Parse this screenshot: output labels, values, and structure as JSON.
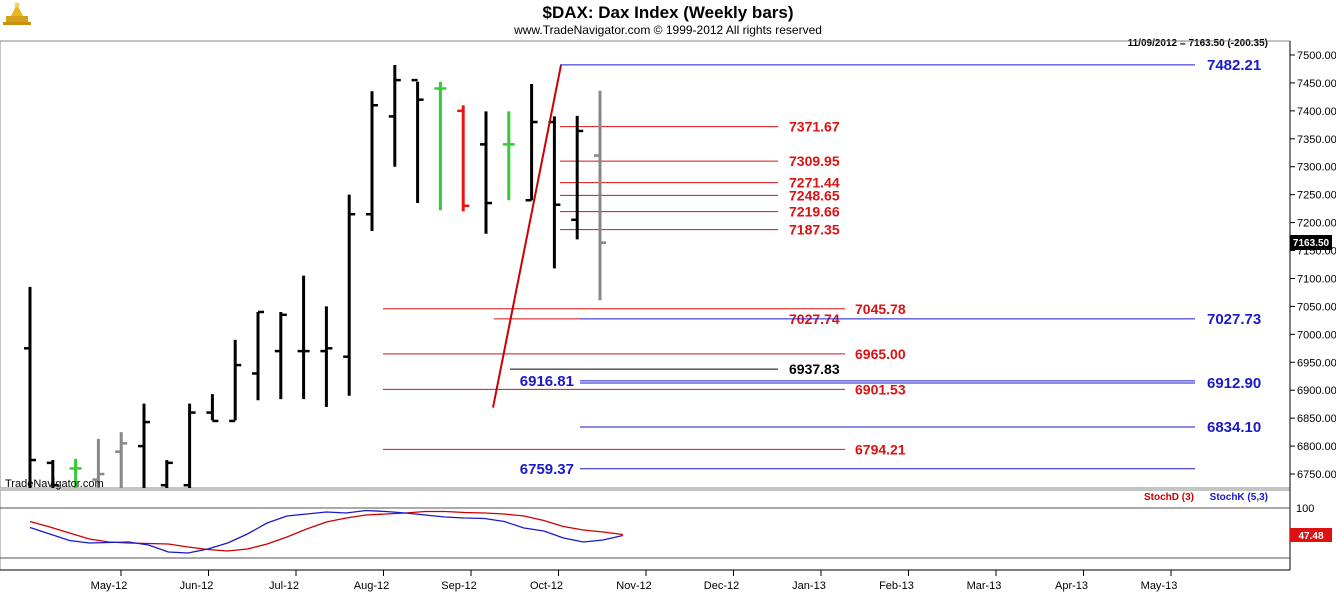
{
  "header": {
    "title": "$DAX:  Dax Index  (Weekly bars)",
    "subtitle": "www.TradeNavigator.com © 1999-2012 All rights reserved",
    "readout": "11/09/2012 = 7163.50 (-200.35)",
    "logo_icon": "gold-scales-logo-icon"
  },
  "watermark": "TradeNavigator.com",
  "chart_data": {
    "type": "bar",
    "price_axis": {
      "ylim": [
        6725,
        7525
      ],
      "ticks": [
        6750,
        6800,
        6850,
        6900,
        6950,
        7000,
        7050,
        7100,
        7150,
        7200,
        7250,
        7300,
        7350,
        7400,
        7450,
        7500
      ],
      "tick_labels": [
        "6750.00",
        "6800.00",
        "6850.00",
        "6900.00",
        "6950.00",
        "7000.00",
        "7050.00",
        "7100.00",
        "7150.00",
        "7200.00",
        "7250.00",
        "7300.00",
        "7350.00",
        "7400.00",
        "7450.00",
        "7500.00"
      ],
      "last_price_label": "7163.50",
      "last_price": 7163.5
    },
    "x_axis": {
      "tick_labels": [
        "May-12",
        "Jun-12",
        "Jul-12",
        "Aug-12",
        "Sep-12",
        "Oct-12",
        "Nov-12",
        "Dec-12",
        "Jan-13",
        "Feb-13",
        "Mar-13",
        "Apr-13",
        "May-13"
      ]
    },
    "bars": [
      {
        "o": 6975,
        "h": 7085,
        "l": 6725,
        "c": 6775,
        "color": "#000000"
      },
      {
        "o": 6770,
        "h": 6775,
        "l": 6725,
        "c": 6730,
        "color": "#000000"
      },
      {
        "o": 6760,
        "h": 6777,
        "l": 6725,
        "c": 6760,
        "color": "#33cc33"
      },
      {
        "o": 6740,
        "h": 6813,
        "l": 6725,
        "c": 6750,
        "color": "#888888"
      },
      {
        "o": 6790,
        "h": 6825,
        "l": 6725,
        "c": 6805,
        "color": "#888888"
      },
      {
        "o": 6800,
        "h": 6876,
        "l": 6725,
        "c": 6843,
        "color": "#000000"
      },
      {
        "o": 6730,
        "h": 6775,
        "l": 6725,
        "c": 6770,
        "color": "#000000"
      },
      {
        "o": 6730,
        "h": 6876,
        "l": 6725,
        "c": 6860,
        "color": "#000000"
      },
      {
        "o": 6860,
        "h": 6893,
        "l": 6846,
        "c": 6845,
        "color": "#000000"
      },
      {
        "o": 6845,
        "h": 6990,
        "l": 6846,
        "c": 6945,
        "color": "#000000"
      },
      {
        "o": 6930,
        "h": 7040,
        "l": 6882,
        "c": 7040,
        "color": "#000000"
      },
      {
        "o": 6970,
        "h": 7040,
        "l": 6884,
        "c": 7035,
        "color": "#000000"
      },
      {
        "o": 6970,
        "h": 7105,
        "l": 6884,
        "c": 6970,
        "color": "#000000"
      },
      {
        "o": 6970,
        "h": 7050,
        "l": 6870,
        "c": 6975,
        "color": "#000000"
      },
      {
        "o": 6960,
        "h": 7250,
        "l": 6890,
        "c": 7215,
        "color": "#000000"
      },
      {
        "o": 7215,
        "h": 7435,
        "l": 7185,
        "c": 7410,
        "color": "#000000"
      },
      {
        "o": 7390,
        "h": 7482,
        "l": 7300,
        "c": 7455,
        "color": "#000000"
      },
      {
        "o": 7455,
        "h": 7452,
        "l": 7235,
        "c": 7420,
        "color": "#000000"
      },
      {
        "o": 7440,
        "h": 7452,
        "l": 7222,
        "c": 7440,
        "color": "#33cc33"
      },
      {
        "o": 7400,
        "h": 7410,
        "l": 7220,
        "c": 7230,
        "color": "#ee1111"
      },
      {
        "o": 7340,
        "h": 7399,
        "l": 7180,
        "c": 7235,
        "color": "#000000"
      },
      {
        "o": 7340,
        "h": 7399,
        "l": 7240,
        "c": 7340,
        "color": "#33cc33"
      },
      {
        "o": 7240,
        "h": 7448,
        "l": 7240,
        "c": 7380,
        "color": "#000000"
      },
      {
        "o": 7380,
        "h": 7390,
        "l": 7118,
        "c": 7232,
        "color": "#000000"
      },
      {
        "o": 7205,
        "h": 7391,
        "l": 7170,
        "c": 7364,
        "color": "#000000"
      },
      {
        "o": 7320,
        "h": 7436,
        "l": 7061,
        "c": 7164,
        "color": "#888888"
      }
    ],
    "trendline": {
      "from": 6869,
      "to": 7482,
      "color": "#cc0000"
    },
    "levels_red": [
      {
        "label": "7371.67",
        "value": 7371.67
      },
      {
        "label": "7309.95",
        "value": 7309.95
      },
      {
        "label": "7271.44",
        "value": 7271.44
      },
      {
        "label": "7248.65",
        "value": 7248.65
      },
      {
        "label": "7219.66",
        "value": 7219.66
      },
      {
        "label": "7187.35",
        "value": 7187.35
      },
      {
        "label": "7045.78",
        "value": 7045.78
      },
      {
        "label": "7027.74",
        "value": 7027.74
      },
      {
        "label": "6965.00",
        "value": 6965.0
      },
      {
        "label": "6901.53",
        "value": 6901.53
      },
      {
        "label": "6794.21",
        "value": 6794.21
      }
    ],
    "levels_black": [
      {
        "label": "6937.83",
        "value": 6937.83
      }
    ],
    "levels_blue": [
      {
        "label": "7482.21",
        "value": 7482.21
      },
      {
        "label": "7027.73",
        "value": 7027.73
      },
      {
        "label": "6912.90",
        "value": 6912.9
      },
      {
        "label": "6916.81",
        "value": 6916.81
      },
      {
        "label": "6834.10",
        "value": 6834.1
      },
      {
        "label": "6759.37",
        "value": 6759.37
      }
    ],
    "stochastic": {
      "ylim": [
        0,
        100
      ],
      "ticks": [
        100
      ],
      "tick_labels": [
        "100"
      ],
      "last_value_label": "47.48",
      "stochD_label": "StochD (3)",
      "stochK_label": "StochK (5,3)",
      "stochD_color": "#cc0000",
      "stochK_color": "#1a1acc",
      "stochD": [
        73,
        62,
        50,
        38,
        32,
        30,
        29,
        28,
        22,
        17,
        14,
        18,
        28,
        42,
        58,
        72,
        80,
        86,
        88,
        90,
        93,
        93,
        91,
        90,
        88,
        84,
        75,
        63,
        56,
        52,
        47
      ],
      "stochK": [
        61,
        48,
        35,
        30,
        31,
        32,
        26,
        12,
        10,
        18,
        30,
        48,
        70,
        84,
        88,
        92,
        90,
        95,
        93,
        90,
        86,
        82,
        80,
        79,
        73,
        60,
        54,
        40,
        32,
        36,
        45
      ]
    }
  }
}
